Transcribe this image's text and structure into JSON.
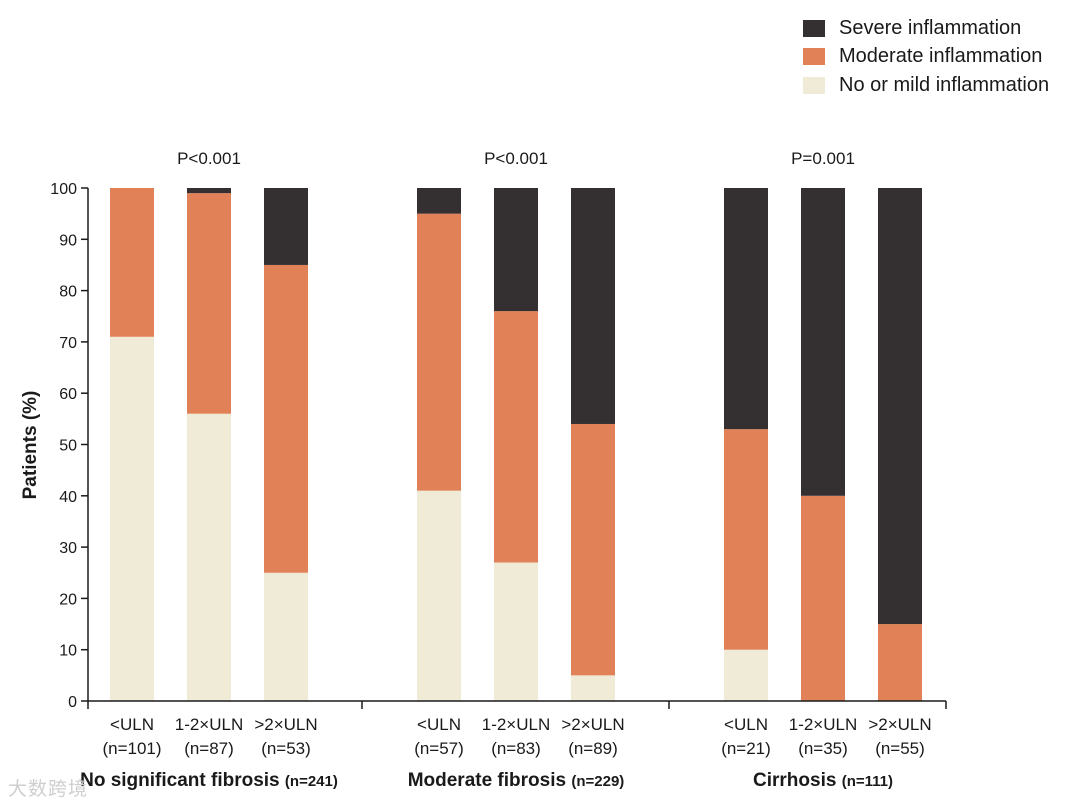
{
  "chart_data": {
    "type": "bar",
    "stacked": true,
    "ylabel": "Patients (%)",
    "ylim": [
      0,
      100
    ],
    "yticks": [
      0,
      10,
      20,
      30,
      40,
      50,
      60,
      70,
      80,
      90,
      100
    ],
    "series": [
      {
        "name": "No or mild inflammation",
        "color": "#f0ebd6",
        "values": [
          71,
          56,
          25,
          41,
          27,
          5,
          10,
          0,
          0
        ]
      },
      {
        "name": "Moderate inflammation",
        "color": "#e08157",
        "values": [
          29,
          43,
          60,
          54,
          49,
          49,
          43,
          40,
          15
        ]
      },
      {
        "name": "Severe inflammation",
        "color": "#343031",
        "values": [
          0,
          1,
          15,
          5,
          24,
          46,
          47,
          60,
          85
        ]
      }
    ],
    "legend_order": [
      2,
      1,
      0
    ],
    "groups": [
      {
        "name": "No significant fibrosis",
        "n_label": "(n=241)",
        "pvalue": "P<0.001",
        "bars": [
          {
            "label": "<ULN",
            "n": "(n=101)"
          },
          {
            "label": "1-2×ULN",
            "n": "(n=87)"
          },
          {
            "label": ">2×ULN",
            "n": "(n=53)"
          }
        ]
      },
      {
        "name": "Moderate fibrosis",
        "n_label": "(n=229)",
        "pvalue": "P<0.001",
        "bars": [
          {
            "label": "<ULN",
            "n": "(n=57)"
          },
          {
            "label": "1-2×ULN",
            "n": "(n=83)"
          },
          {
            "label": ">2×ULN",
            "n": "(n=89)"
          }
        ]
      },
      {
        "name": "Cirrhosis",
        "n_label": "(n=111)",
        "pvalue": "P=0.001",
        "bars": [
          {
            "label": "<ULN",
            "n": "(n=21)"
          },
          {
            "label": "1-2×ULN",
            "n": "(n=35)"
          },
          {
            "label": ">2×ULN",
            "n": "(n=55)"
          }
        ]
      }
    ]
  },
  "watermark": "大数跨境"
}
